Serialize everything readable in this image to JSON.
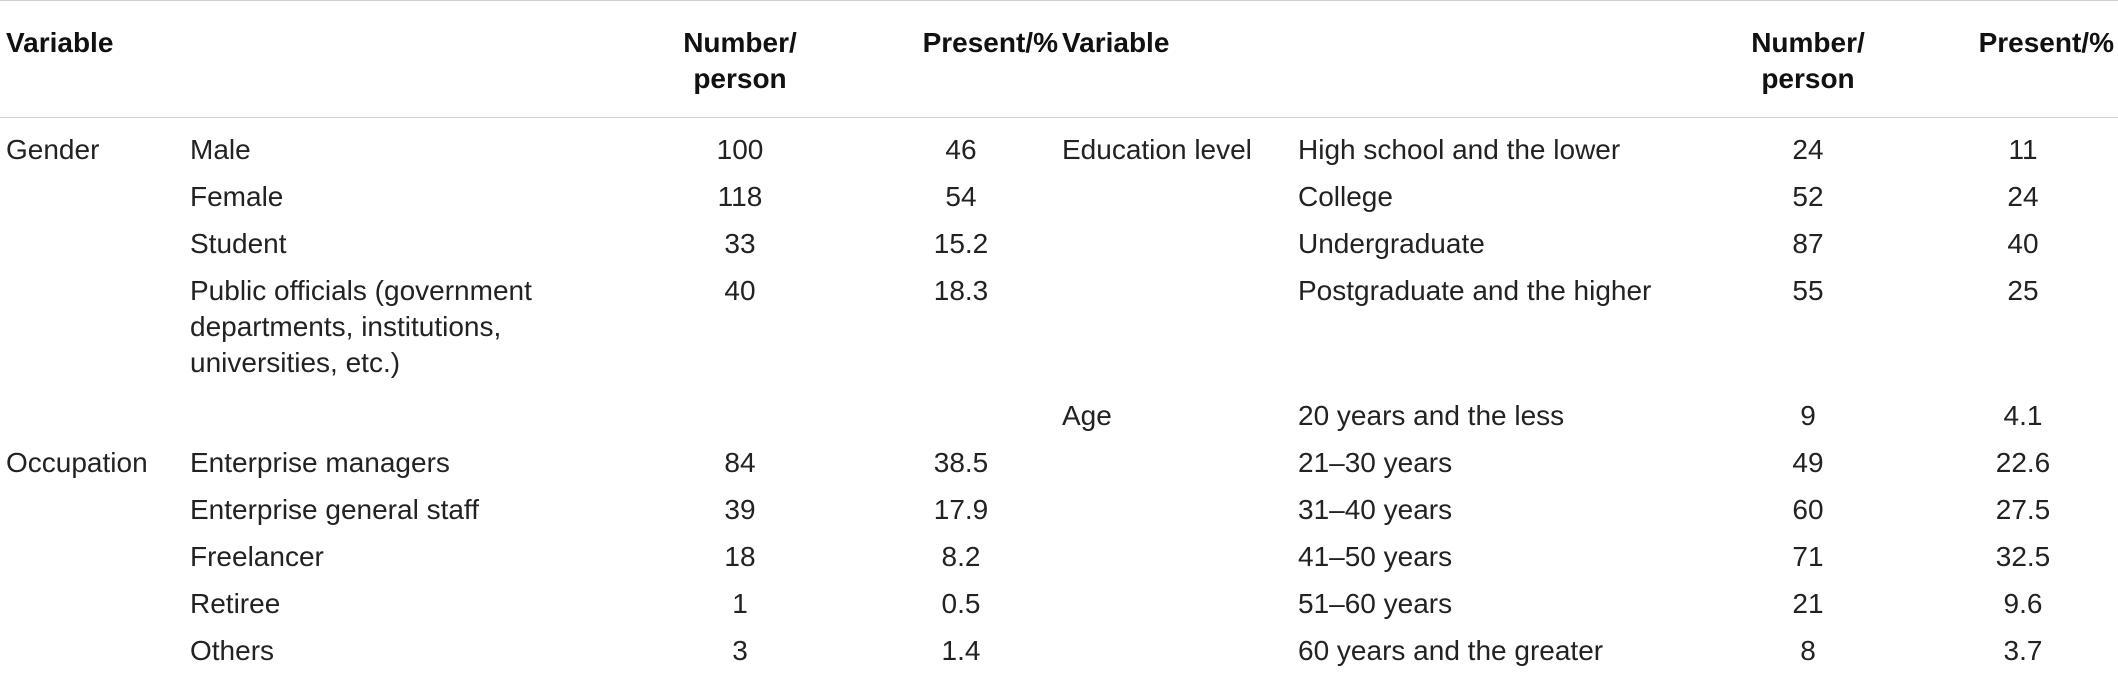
{
  "table": {
    "header": {
      "variable_left": "Variable",
      "number_left_1": "Number/",
      "number_left_2": "person",
      "present_left": "Present/%",
      "variable_right": "Variable",
      "number_right_1": "Number/",
      "number_right_2": "person",
      "present_right": "Present/%"
    },
    "rows": [
      {
        "lv": "Gender",
        "lc": "Male",
        "ln": "100",
        "lp": "46",
        "rv": "Education level",
        "rc": "High school and the lower",
        "rn": "24",
        "rp": "11"
      },
      {
        "lv": "",
        "lc": "Female",
        "ln": "118",
        "lp": "54",
        "rv": "",
        "rc": "College",
        "rn": "52",
        "rp": "24"
      },
      {
        "lv": "",
        "lc": "Student",
        "ln": "33",
        "lp": "15.2",
        "rv": "",
        "rc": "Undergraduate",
        "rn": "87",
        "rp": "40"
      },
      {
        "lv": "",
        "lc_1": "Public officials (government",
        "lc_2": "departments, institutions,",
        "lc_3": "universities, etc.)",
        "ln": "40",
        "lp": "18.3",
        "rv": "",
        "rc": "Postgraduate and the higher",
        "rn": "55",
        "rp": "25"
      },
      {
        "lv": "",
        "lc": "",
        "ln": "",
        "lp": "",
        "rv": "Age",
        "rc": "20 years and the less",
        "rn": "9",
        "rp": "4.1"
      },
      {
        "lv": "Occupation",
        "lc": "Enterprise managers",
        "ln": "84",
        "lp": "38.5",
        "rv": "",
        "rc": "21–30 years",
        "rn": "49",
        "rp": "22.6"
      },
      {
        "lv": "",
        "lc": "Enterprise general staff",
        "ln": "39",
        "lp": "17.9",
        "rv": "",
        "rc": "31–40 years",
        "rn": "60",
        "rp": "27.5"
      },
      {
        "lv": "",
        "lc": "Freelancer",
        "ln": "18",
        "lp": "8.2",
        "rv": "",
        "rc": "41–50 years",
        "rn": "71",
        "rp": "32.5"
      },
      {
        "lv": "",
        "lc": "Retiree",
        "ln": "1",
        "lp": "0.5",
        "rv": "",
        "rc": "51–60 years",
        "rn": "21",
        "rp": "9.6"
      },
      {
        "lv": "",
        "lc": "Others",
        "ln": "3",
        "lp": "1.4",
        "rv": "",
        "rc": "60 years and the greater",
        "rn": "8",
        "rp": "3.7"
      }
    ]
  }
}
